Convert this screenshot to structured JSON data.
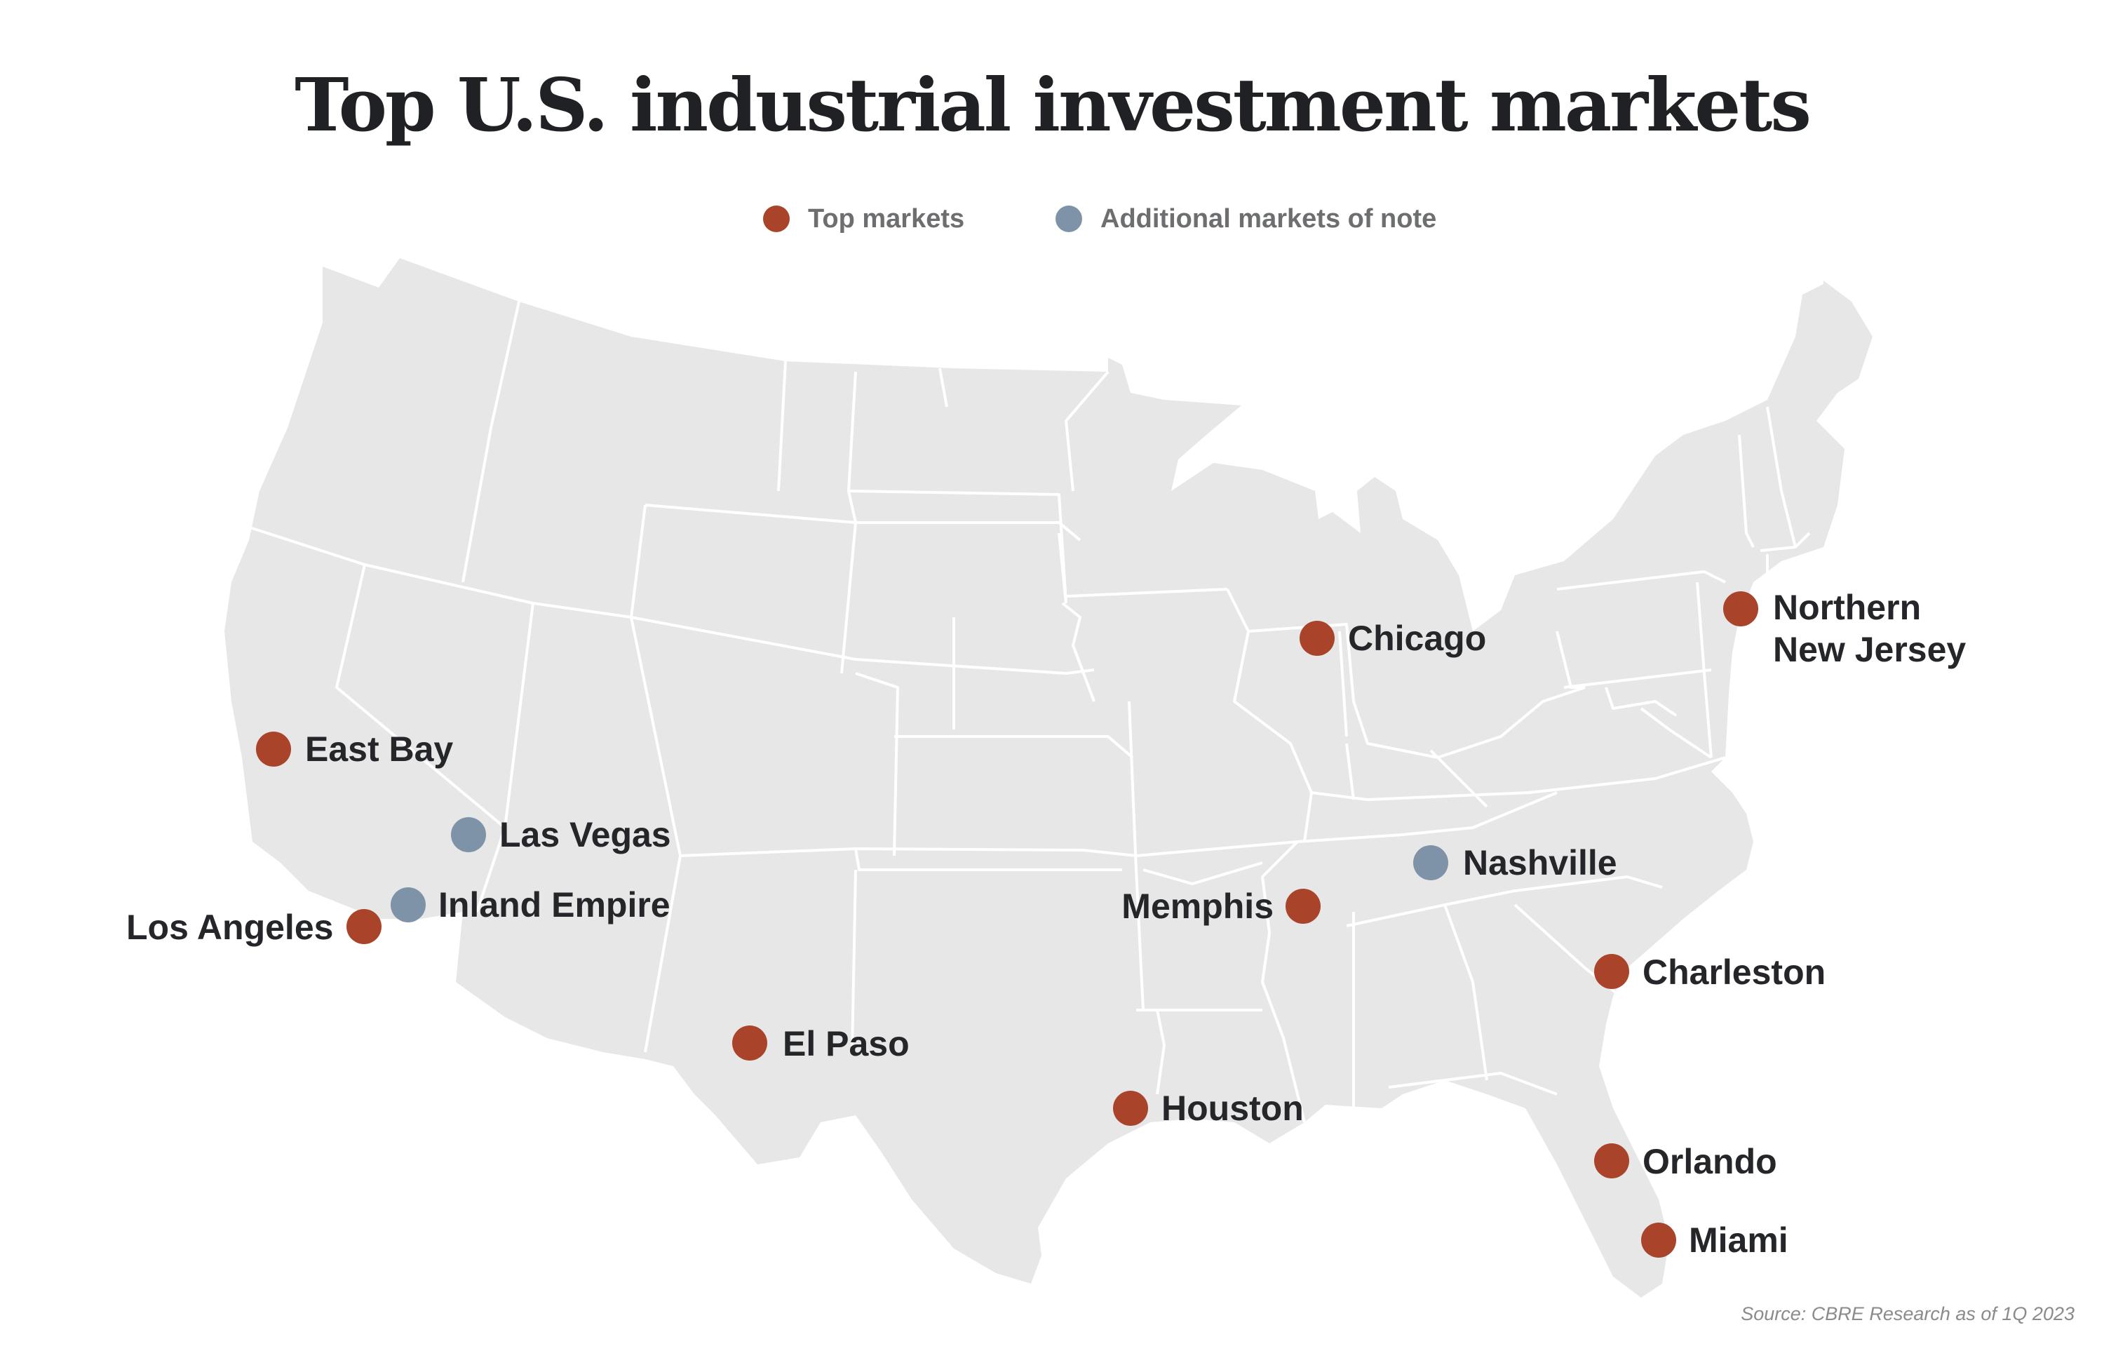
{
  "title": "Top U.S. industrial investment markets",
  "legend": {
    "top": {
      "label": "Top markets",
      "color": "#a9432a"
    },
    "additional": {
      "label": "Additional markets of note",
      "color": "#7e93a8"
    }
  },
  "colors": {
    "land": "#e6e7e6",
    "border": "#ffffff",
    "top_marker": "#a9432a",
    "additional_marker": "#7e93a8"
  },
  "markets": [
    {
      "name": "Northern New Jersey",
      "line1": "Northern",
      "line2": "New Jersey",
      "category": "top"
    },
    {
      "name": "Chicago",
      "category": "top"
    },
    {
      "name": "East Bay",
      "category": "top"
    },
    {
      "name": "Las Vegas",
      "category": "additional"
    },
    {
      "name": "Inland Empire",
      "category": "additional"
    },
    {
      "name": "Los Angeles",
      "category": "top"
    },
    {
      "name": "Nashville",
      "category": "additional"
    },
    {
      "name": "Memphis",
      "category": "top"
    },
    {
      "name": "Charleston",
      "category": "top"
    },
    {
      "name": "El Paso",
      "category": "top"
    },
    {
      "name": "Houston",
      "category": "top"
    },
    {
      "name": "Orlando",
      "category": "top"
    },
    {
      "name": "Miami",
      "category": "top"
    }
  ],
  "source": "Source: CBRE Research as of 1Q 2023"
}
